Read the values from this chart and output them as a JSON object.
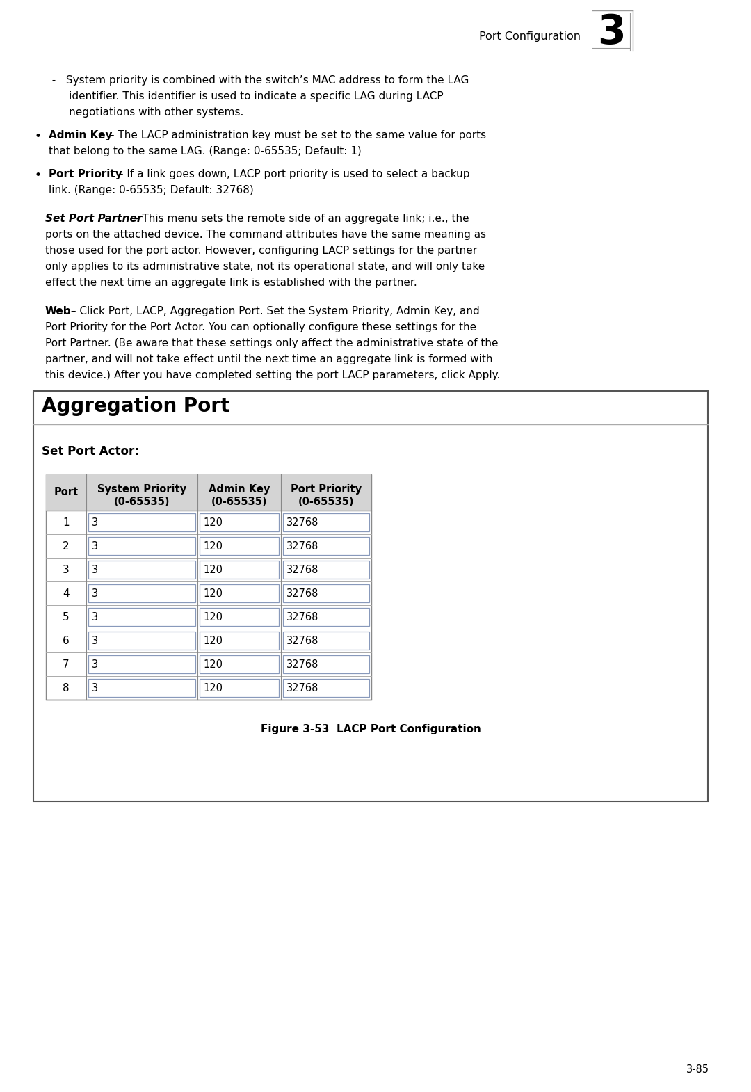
{
  "header_text": "Port Configuration",
  "chapter_num": "3",
  "page_num": "3-85",
  "bg_color": "#ffffff",
  "text_color": "#000000",
  "box_title": "Aggregation Port",
  "set_port_actor_label": "Set Port Actor:",
  "table_headers": [
    "Port",
    "System Priority\n(0-65535)",
    "Admin Key\n(0-65535)",
    "Port Priority\n(0-65535)"
  ],
  "table_rows": [
    [
      "1",
      "3",
      "120",
      "32768"
    ],
    [
      "2",
      "3",
      "120",
      "32768"
    ],
    [
      "3",
      "3",
      "120",
      "32768"
    ],
    [
      "4",
      "3",
      "120",
      "32768"
    ],
    [
      "5",
      "3",
      "120",
      "32768"
    ],
    [
      "6",
      "3",
      "120",
      "32768"
    ],
    [
      "7",
      "3",
      "120",
      "32768"
    ],
    [
      "8",
      "3",
      "120",
      "32768"
    ]
  ],
  "figure_caption": "Figure 3-53  LACP Port Configuration",
  "line1_dash": "  -   System priority is combined with the switch’s MAC address to form the LAG",
  "line2_dash": "       identifier. This identifier is used to indicate a specific LAG during LACP",
  "line3_dash": "       negotiations with other systems.",
  "admin_bold": "Admin Key",
  "admin_dash": " – ",
  "admin_normal1": "The LACP administration key must be set to the same value for ports",
  "admin_normal2": "that belong to the same LAG. (Range: 0-65535; Default: 1)",
  "pp_bold": "Port Priority",
  "pp_dash": " – ",
  "pp_normal1": "If a link goes down, LACP port priority is used to select a backup",
  "pp_normal2": "link. (Range: 0-65535; Default: 32768)",
  "spp_italic": "Set Port Partner",
  "spp_rest1": " – This menu sets the remote side of an aggregate link; i.e., the",
  "spp_rest2": "ports on the attached device. The command attributes have the same meaning as",
  "spp_rest3": "those used for the port actor. However, configuring LACP settings for the partner",
  "spp_rest4": "only applies to its administrative state, not its operational state, and will only take",
  "spp_rest5": "effect the next time an aggregate link is established with the partner.",
  "web_bold": "Web",
  "web_rest1": " – Click Port, LACP, Aggregation Port. Set the System Priority, Admin Key, and",
  "web_rest2": "Port Priority for the Port Actor. You can optionally configure these settings for the",
  "web_rest3": "Port Partner. (Be aware that these settings only affect the administrative state of the",
  "web_rest4": "partner, and will not take effect until the next time an aggregate link is formed with",
  "web_rest5": "this device.) After you have completed setting the port LACP parameters, click Apply."
}
